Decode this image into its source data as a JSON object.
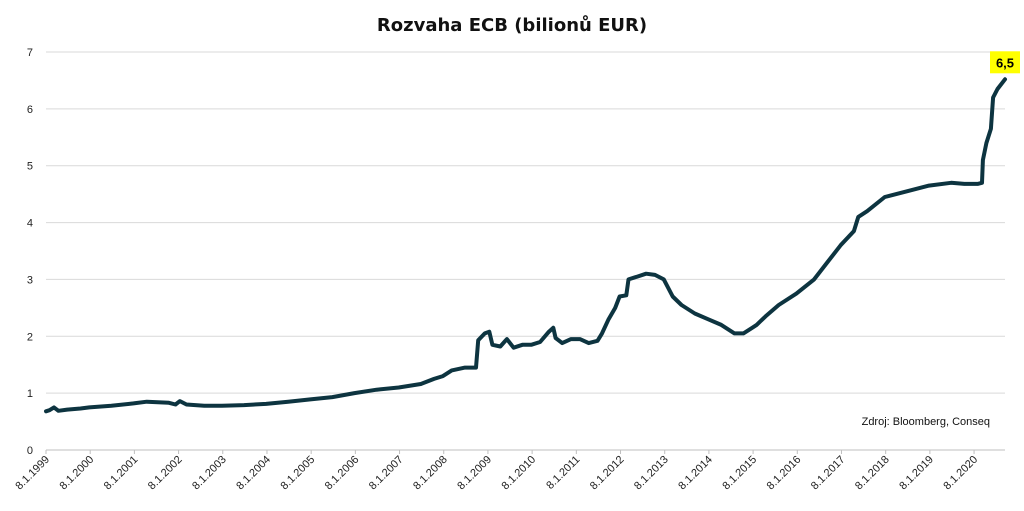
{
  "chart_data": {
    "type": "line",
    "title": "Rozvaha ECB (bilionů EUR)",
    "xlabel": "",
    "ylabel": "",
    "ylim": [
      0,
      7
    ],
    "yticks": [
      "0",
      "1",
      "2",
      "3",
      "4",
      "5",
      "6",
      "7"
    ],
    "xlim": [
      1999.02,
      2020.72
    ],
    "xticks": [
      {
        "label": "8.1.1999",
        "x": 1999.02
      },
      {
        "label": "8.1.2000",
        "x": 2000.02
      },
      {
        "label": "8.1.2001",
        "x": 2001.02
      },
      {
        "label": "8.1.2002",
        "x": 2002.02
      },
      {
        "label": "8.1.2003",
        "x": 2003.02
      },
      {
        "label": "8.1.2004",
        "x": 2004.02
      },
      {
        "label": "8.1.2005",
        "x": 2005.02
      },
      {
        "label": "8.1.2006",
        "x": 2006.02
      },
      {
        "label": "8.1.2007",
        "x": 2007.02
      },
      {
        "label": "8.1.2008",
        "x": 2008.02
      },
      {
        "label": "8.1.2009",
        "x": 2009.02
      },
      {
        "label": "8.1.2010",
        "x": 2010.02
      },
      {
        "label": "8.1.2011",
        "x": 2011.02
      },
      {
        "label": "8.1.2012",
        "x": 2012.02
      },
      {
        "label": "8.1.2013",
        "x": 2013.02
      },
      {
        "label": "8.1.2014",
        "x": 2014.02
      },
      {
        "label": "8.1.2015",
        "x": 2015.02
      },
      {
        "label": "8.1.2016",
        "x": 2016.02
      },
      {
        "label": "8.1.2017",
        "x": 2017.02
      },
      {
        "label": "8.1.2018",
        "x": 2018.02
      },
      {
        "label": "8.1.2019",
        "x": 2019.02
      },
      {
        "label": "8.1.2020",
        "x": 2020.02
      }
    ],
    "grid": true,
    "line_color": "#0d3440",
    "series": [
      {
        "values": [
          [
            1999.02,
            0.68
          ],
          [
            1999.1,
            0.7
          ],
          [
            1999.2,
            0.75
          ],
          [
            1999.3,
            0.69
          ],
          [
            1999.5,
            0.71
          ],
          [
            1999.8,
            0.73
          ],
          [
            2000.0,
            0.75
          ],
          [
            2000.5,
            0.78
          ],
          [
            2001.0,
            0.82
          ],
          [
            2001.3,
            0.85
          ],
          [
            2001.8,
            0.83
          ],
          [
            2001.95,
            0.8
          ],
          [
            2002.05,
            0.86
          ],
          [
            2002.2,
            0.8
          ],
          [
            2002.6,
            0.78
          ],
          [
            2003.0,
            0.78
          ],
          [
            2003.5,
            0.79
          ],
          [
            2004.0,
            0.81
          ],
          [
            2004.5,
            0.85
          ],
          [
            2005.0,
            0.89
          ],
          [
            2005.5,
            0.93
          ],
          [
            2006.0,
            1.0
          ],
          [
            2006.5,
            1.06
          ],
          [
            2007.0,
            1.1
          ],
          [
            2007.5,
            1.16
          ],
          [
            2007.8,
            1.25
          ],
          [
            2008.0,
            1.3
          ],
          [
            2008.2,
            1.4
          ],
          [
            2008.5,
            1.45
          ],
          [
            2008.75,
            1.45
          ],
          [
            2008.8,
            1.93
          ],
          [
            2008.95,
            2.05
          ],
          [
            2009.05,
            2.08
          ],
          [
            2009.12,
            1.85
          ],
          [
            2009.3,
            1.82
          ],
          [
            2009.45,
            1.95
          ],
          [
            2009.6,
            1.8
          ],
          [
            2009.8,
            1.85
          ],
          [
            2010.0,
            1.85
          ],
          [
            2010.2,
            1.9
          ],
          [
            2010.4,
            2.08
          ],
          [
            2010.5,
            2.15
          ],
          [
            2010.55,
            1.97
          ],
          [
            2010.7,
            1.88
          ],
          [
            2010.9,
            1.95
          ],
          [
            2011.1,
            1.95
          ],
          [
            2011.3,
            1.88
          ],
          [
            2011.5,
            1.92
          ],
          [
            2011.6,
            2.05
          ],
          [
            2011.75,
            2.3
          ],
          [
            2011.9,
            2.5
          ],
          [
            2012.0,
            2.7
          ],
          [
            2012.15,
            2.72
          ],
          [
            2012.2,
            3.0
          ],
          [
            2012.4,
            3.05
          ],
          [
            2012.6,
            3.1
          ],
          [
            2012.8,
            3.08
          ],
          [
            2013.0,
            3.0
          ],
          [
            2013.2,
            2.7
          ],
          [
            2013.4,
            2.55
          ],
          [
            2013.7,
            2.4
          ],
          [
            2014.0,
            2.3
          ],
          [
            2014.3,
            2.2
          ],
          [
            2014.6,
            2.05
          ],
          [
            2014.8,
            2.05
          ],
          [
            2015.0,
            2.15
          ],
          [
            2015.1,
            2.2
          ],
          [
            2015.3,
            2.35
          ],
          [
            2015.6,
            2.55
          ],
          [
            2016.0,
            2.75
          ],
          [
            2016.4,
            3.0
          ],
          [
            2016.7,
            3.3
          ],
          [
            2017.0,
            3.6
          ],
          [
            2017.3,
            3.85
          ],
          [
            2017.4,
            4.1
          ],
          [
            2017.6,
            4.2
          ],
          [
            2018.0,
            4.45
          ],
          [
            2018.5,
            4.55
          ],
          [
            2019.0,
            4.65
          ],
          [
            2019.5,
            4.7
          ],
          [
            2019.8,
            4.68
          ],
          [
            2020.1,
            4.68
          ],
          [
            2020.2,
            4.7
          ],
          [
            2020.22,
            5.1
          ],
          [
            2020.3,
            5.4
          ],
          [
            2020.4,
            5.65
          ],
          [
            2020.45,
            6.2
          ],
          [
            2020.55,
            6.35
          ],
          [
            2020.72,
            6.52
          ]
        ]
      }
    ],
    "end_label": {
      "text": "6,5",
      "x": 2020.72,
      "y": 6.52,
      "background": "#ffff00"
    },
    "annotation": "Zdroj: Bloomberg,  Conseq"
  }
}
